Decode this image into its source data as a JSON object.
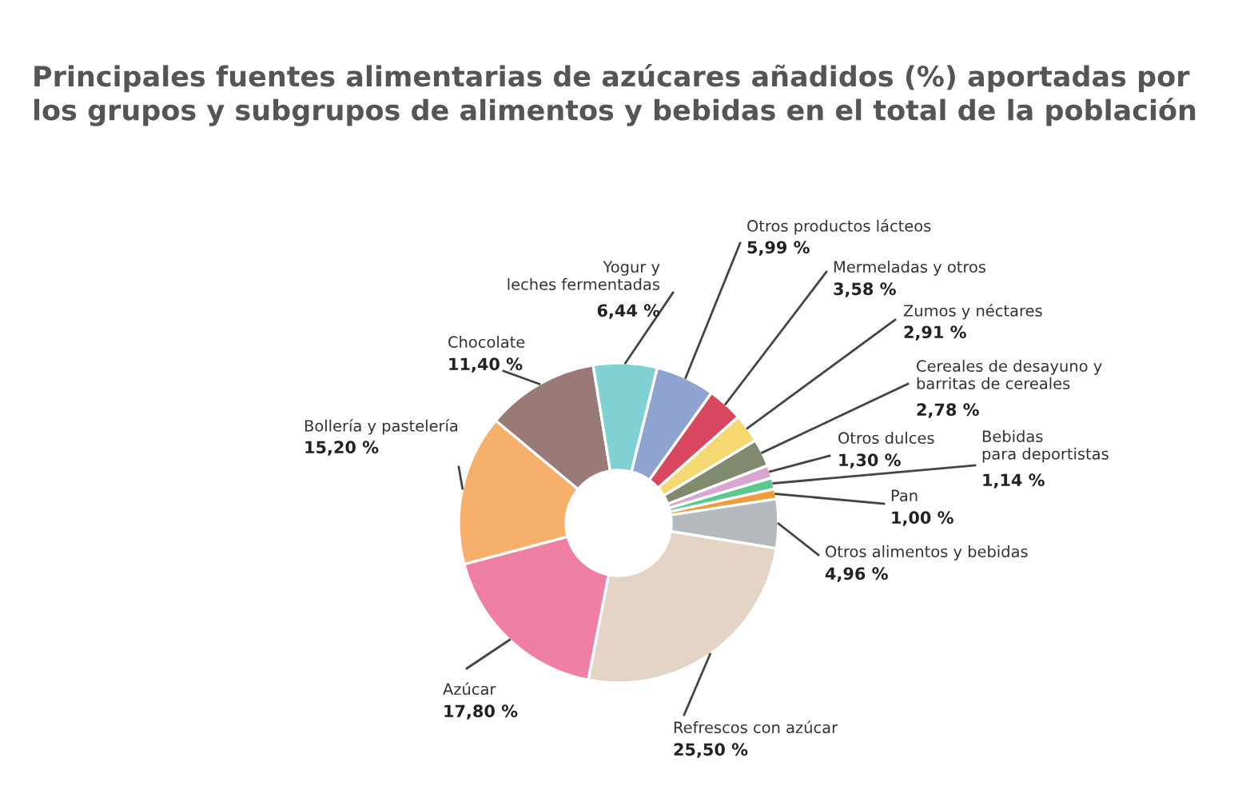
{
  "chart_data": {
    "type": "donut",
    "title": "Principales fuentes alimentarias de azúcares añadidos (%) aportadas por\nlos grupos y subgrupos de alimentos y bebidas en el total de la población",
    "categories": [
      "Otros productos lácteos",
      "Mermeladas y otros",
      "Zumos y néctares",
      "Cereales de desayuno y\nbarritas de cereales",
      "Otros dulces",
      "Bebidas\npara deportistas",
      "Pan",
      "Otros alimentos y bebidas",
      "Refrescos con azúcar",
      "Azúcar",
      "Bollería y pastelería",
      "Chocolate",
      "Yogur y\nleches fermentadas"
    ],
    "values": [
      5.99,
      3.58,
      2.91,
      2.78,
      1.3,
      1.14,
      1.0,
      4.96,
      25.5,
      17.8,
      15.2,
      11.4,
      6.44
    ],
    "value_labels": [
      "5,99 %",
      "3,58 %",
      "2,91 %",
      "2,78 %",
      "1,30 %",
      "1,14 %",
      "1,00 %",
      "4,96 %",
      "25,50 %",
      "17,80 %",
      "15,20 %",
      "11,40 %",
      "6,44 %"
    ],
    "colors": [
      "#8ea3d0",
      "#d9475e",
      "#f6d873",
      "#7f8a6f",
      "#dba5d3",
      "#5bc98c",
      "#f29b3a",
      "#b3b9bd",
      "#e3d4c5",
      "#ef7fa3",
      "#f7b06c",
      "#9a7a77",
      "#7fd1d3"
    ],
    "legend": false
  }
}
